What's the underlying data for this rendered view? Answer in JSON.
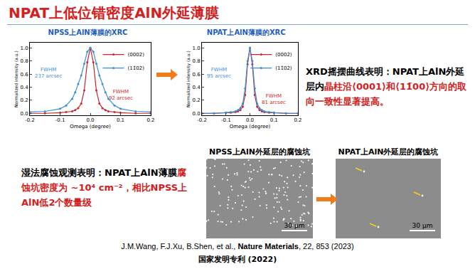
{
  "chart_data": [
    {
      "type": "line",
      "title": "NPSS上AlN薄膜的XRC",
      "x_label": "Omega (degree)",
      "y_label": "Normalized intensity (a.u.)",
      "x": [
        -0.2,
        -0.15,
        -0.1,
        -0.08,
        -0.06,
        -0.05,
        -0.04,
        -0.03,
        -0.02,
        -0.01,
        0,
        0.01,
        0.02,
        0.03,
        0.04,
        0.05,
        0.06,
        0.08,
        0.1,
        0.15,
        0.2
      ],
      "series": [
        {
          "name": "(0002)",
          "color": "#c8282d",
          "marker": "circle",
          "line_style": "solid",
          "values": [
            0.0,
            0.0,
            0.01,
            0.02,
            0.03,
            0.05,
            0.08,
            0.15,
            0.35,
            0.78,
            1.0,
            0.78,
            0.35,
            0.15,
            0.08,
            0.05,
            0.03,
            0.02,
            0.01,
            0.0,
            0.0
          ]
        },
        {
          "name": "(11̄02)",
          "color": "#3a8fd8",
          "marker": "circle",
          "line_style": "solid",
          "values": [
            0.02,
            0.03,
            0.07,
            0.12,
            0.22,
            0.32,
            0.45,
            0.58,
            0.76,
            0.94,
            1.0,
            0.94,
            0.76,
            0.58,
            0.45,
            0.32,
            0.22,
            0.12,
            0.07,
            0.03,
            0.02
          ]
        }
      ],
      "xlim": [
        -0.2,
        0.2
      ],
      "xticks": [
        -0.2,
        -0.1,
        {
          "value": 0,
          "label": "0.0"
        },
        0.1,
        0.2
      ],
      "ylim": [
        -0.03,
        1.08
      ],
      "yticks": [
        {
          "value": 0,
          "label": "0.0"
        },
        0.2,
        0.4,
        0.6,
        0.8,
        {
          "value": 1,
          "label": "1.0"
        }
      ],
      "legend": "upper right",
      "grid": false,
      "annotations": [
        {
          "text": "FWHM\n237 arcsec",
          "x": -0.14,
          "y": 0.62,
          "color": "#3a8fd8"
        },
        {
          "text": "FWHM\n92 arcsec",
          "x": 0.1,
          "y": 0.28,
          "color": "#c8282d"
        }
      ]
    },
    {
      "type": "line",
      "title": "NPAT上AlN薄膜的XRC",
      "x_label": "Omega (degree)",
      "y_label": "Normalized intensity (a.u.)",
      "x": [
        -0.2,
        -0.15,
        -0.1,
        -0.08,
        -0.06,
        -0.05,
        -0.04,
        -0.03,
        -0.02,
        -0.01,
        0,
        0.01,
        0.02,
        0.03,
        0.04,
        0.05,
        0.06,
        0.08,
        0.1,
        0.15,
        0.2
      ],
      "series": [
        {
          "name": "(0002)",
          "color": "#c8282d",
          "marker": "circle",
          "line_style": "solid",
          "values": [
            0.0,
            0.0,
            0.01,
            0.01,
            0.02,
            0.03,
            0.05,
            0.1,
            0.28,
            0.75,
            1.0,
            0.75,
            0.28,
            0.1,
            0.05,
            0.03,
            0.02,
            0.01,
            0.01,
            0.0,
            0.0
          ]
        },
        {
          "name": "(11̄02)",
          "color": "#3a8fd8",
          "marker": "circle",
          "line_style": "solid",
          "values": [
            0.0,
            0.0,
            0.01,
            0.02,
            0.03,
            0.05,
            0.08,
            0.15,
            0.38,
            0.8,
            1.0,
            0.8,
            0.38,
            0.15,
            0.08,
            0.05,
            0.03,
            0.02,
            0.01,
            0.0,
            0.0
          ]
        }
      ],
      "xlim": [
        -0.2,
        0.2
      ],
      "xticks": [
        -0.2,
        -0.1,
        {
          "value": 0,
          "label": "0.0"
        },
        0.1,
        0.2
      ],
      "ylim": [
        -0.03,
        1.08
      ],
      "yticks": [
        {
          "value": 0,
          "label": "0.0"
        },
        0.2,
        0.4,
        0.6,
        0.8,
        {
          "value": 1,
          "label": "1.0"
        }
      ],
      "legend": "upper right",
      "grid": false,
      "annotations": [
        {
          "text": "FWHM\n95 arcsec",
          "x": -0.13,
          "y": 0.62,
          "color": "#3a8fd8"
        },
        {
          "text": "FWHM\n81 arcsec",
          "x": 0.1,
          "y": 0.22,
          "color": "#c8282d"
        }
      ]
    }
  ],
  "slide": {
    "title": "NPAT上低位错密度AlN外延薄膜",
    "xrd_note": [
      {
        "text": "XRD摇摆曲线表明：NPAT上AlN外延层内",
        "color": "#000000"
      },
      {
        "text": "晶柱沿⟨0001⟩和⟨11̄00⟩方向的取向一致性显著提高。",
        "color": "#d42020"
      }
    ],
    "etch_note": [
      {
        "text": "湿法腐蚀观测表明：NPAT上AlN薄膜",
        "color": "#000000"
      },
      {
        "text": "腐蚀坑密度为 ~10⁴ cm⁻²，相比NPSS上AlN低2个数量级",
        "color": "#d42020"
      }
    ],
    "etch_images": [
      {
        "label": "NPSS上AlN外延层的腐蚀坑",
        "scale_bar": "30 μm"
      },
      {
        "label": "NPAT上AlN外延层的腐蚀坑",
        "scale_bar": "30 μm"
      }
    ],
    "citation": {
      "authors": "J.M.Wang, F.J.Xu, B.Shen, et al., ",
      "journal": "Nature Materials",
      "details": ", 22, 853 (2023)"
    },
    "patent": "国家发明专利 (2022)"
  }
}
